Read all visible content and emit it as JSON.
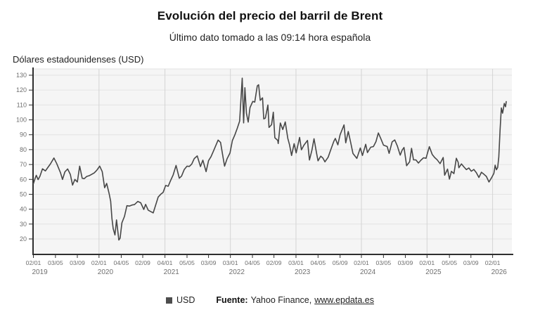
{
  "header": {
    "title": "Evolución del precio del barril de Brent",
    "subtitle": "Último dato tomado a las 09:14 hora española"
  },
  "legend": {
    "series_label": "USD",
    "marker_color": "#4d4d4d"
  },
  "footer": {
    "source_label": "Fuente:",
    "source_name": "Yahoo Finance,",
    "source_link": "www.epdata.es"
  },
  "colors": {
    "line": "#474747",
    "plot_bg": "#f5f5f5",
    "grid_h": "#e4e4e4",
    "grid_v": "#d4d4d4",
    "axis": "#2f2f2f",
    "tick_text": "#6f6f6f"
  },
  "chart_data": {
    "type": "line",
    "title": "Evolución del precio del barril de Brent",
    "subtitle": "Último dato tomado a las 09:14 hora española",
    "ylabel": "Dólares estadounidenses (USD)",
    "xlabel": "",
    "ylim": [
      16,
      134
    ],
    "yticks": [
      20,
      30,
      40,
      50,
      60,
      70,
      80,
      90,
      100,
      110,
      120,
      130
    ],
    "grid": true,
    "legend_position": "bottom",
    "xticks": [
      {
        "d": "2019-01-02",
        "label": "02/01",
        "year": "2019"
      },
      {
        "d": "2019-05-03",
        "label": "03/05"
      },
      {
        "d": "2019-09-03",
        "label": "03/09"
      },
      {
        "d": "2020-01-02",
        "label": "02/01",
        "year": "2020"
      },
      {
        "d": "2020-05-04",
        "label": "04/05"
      },
      {
        "d": "2020-09-02",
        "label": "02/09"
      },
      {
        "d": "2021-01-04",
        "label": "04/01",
        "year": "2021"
      },
      {
        "d": "2021-05-05",
        "label": "05/05"
      },
      {
        "d": "2021-09-03",
        "label": "03/09"
      },
      {
        "d": "2022-01-03",
        "label": "03/01",
        "year": "2022"
      },
      {
        "d": "2022-05-04",
        "label": "04/05"
      },
      {
        "d": "2022-09-02",
        "label": "02/09"
      },
      {
        "d": "2023-01-03",
        "label": "03/01",
        "year": "2023"
      },
      {
        "d": "2023-05-04",
        "label": "04/05"
      },
      {
        "d": "2023-09-05",
        "label": "05/09"
      },
      {
        "d": "2024-01-02",
        "label": "02/01",
        "year": "2024"
      },
      {
        "d": "2024-05-03",
        "label": "03/05"
      },
      {
        "d": "2024-09-03",
        "label": "03/09"
      },
      {
        "d": "2025-01-02",
        "label": "02/01",
        "year": "2025"
      },
      {
        "d": "2025-05-05",
        "label": "05/05"
      },
      {
        "d": "2025-09-03",
        "label": "03/09"
      },
      {
        "d": "2026-01-02",
        "label": "02/01",
        "year": "2026"
      }
    ],
    "series": [
      {
        "name": "USD",
        "points": [
          [
            "2019-01-02",
            57.1
          ],
          [
            "2019-01-11",
            60.5
          ],
          [
            "2019-01-18",
            62.7
          ],
          [
            "2019-01-28",
            59.9
          ],
          [
            "2019-02-08",
            62.1
          ],
          [
            "2019-02-22",
            67.1
          ],
          [
            "2019-03-08",
            65.7
          ],
          [
            "2019-03-21",
            67.9
          ],
          [
            "2019-04-05",
            70.3
          ],
          [
            "2019-04-25",
            74.4
          ],
          [
            "2019-05-10",
            70.6
          ],
          [
            "2019-05-31",
            64.5
          ],
          [
            "2019-06-12",
            60.0
          ],
          [
            "2019-06-25",
            65.1
          ],
          [
            "2019-07-10",
            67.0
          ],
          [
            "2019-07-25",
            63.4
          ],
          [
            "2019-08-07",
            56.2
          ],
          [
            "2019-08-20",
            60.0
          ],
          [
            "2019-09-03",
            58.3
          ],
          [
            "2019-09-16",
            68.9
          ],
          [
            "2019-09-30",
            60.8
          ],
          [
            "2019-10-11",
            60.5
          ],
          [
            "2019-10-25",
            62.0
          ],
          [
            "2019-11-08",
            62.5
          ],
          [
            "2019-11-22",
            63.4
          ],
          [
            "2019-12-06",
            64.4
          ],
          [
            "2019-12-20",
            66.1
          ],
          [
            "2020-01-06",
            68.9
          ],
          [
            "2020-01-20",
            65.2
          ],
          [
            "2020-02-03",
            54.4
          ],
          [
            "2020-02-14",
            57.3
          ],
          [
            "2020-02-28",
            50.5
          ],
          [
            "2020-03-06",
            45.3
          ],
          [
            "2020-03-13",
            33.8
          ],
          [
            "2020-03-20",
            26.9
          ],
          [
            "2020-03-30",
            22.7
          ],
          [
            "2020-04-08",
            32.8
          ],
          [
            "2020-04-21",
            19.3
          ],
          [
            "2020-04-28",
            20.5
          ],
          [
            "2020-05-08",
            30.9
          ],
          [
            "2020-05-22",
            35.1
          ],
          [
            "2020-06-05",
            42.3
          ],
          [
            "2020-06-19",
            42.1
          ],
          [
            "2020-07-03",
            42.8
          ],
          [
            "2020-07-17",
            43.1
          ],
          [
            "2020-08-05",
            45.2
          ],
          [
            "2020-08-21",
            44.3
          ],
          [
            "2020-09-08",
            39.8
          ],
          [
            "2020-09-18",
            43.2
          ],
          [
            "2020-10-02",
            39.3
          ],
          [
            "2020-10-30",
            37.5
          ],
          [
            "2020-11-13",
            42.8
          ],
          [
            "2020-11-27",
            48.2
          ],
          [
            "2020-12-11",
            50.0
          ],
          [
            "2020-12-24",
            51.3
          ],
          [
            "2021-01-08",
            55.9
          ],
          [
            "2021-01-22",
            55.4
          ],
          [
            "2021-02-05",
            59.3
          ],
          [
            "2021-02-19",
            62.9
          ],
          [
            "2021-03-05",
            69.4
          ],
          [
            "2021-03-23",
            60.8
          ],
          [
            "2021-04-05",
            62.2
          ],
          [
            "2021-04-20",
            66.6
          ],
          [
            "2021-05-05",
            68.9
          ],
          [
            "2021-05-18",
            68.7
          ],
          [
            "2021-06-01",
            70.3
          ],
          [
            "2021-06-15",
            74.0
          ],
          [
            "2021-07-01",
            75.8
          ],
          [
            "2021-07-19",
            68.6
          ],
          [
            "2021-08-02",
            72.9
          ],
          [
            "2021-08-20",
            65.2
          ],
          [
            "2021-09-03",
            72.6
          ],
          [
            "2021-09-17",
            75.3
          ],
          [
            "2021-10-01",
            79.3
          ],
          [
            "2021-10-26",
            86.4
          ],
          [
            "2021-11-09",
            84.8
          ],
          [
            "2021-11-26",
            72.7
          ],
          [
            "2021-12-01",
            68.9
          ],
          [
            "2021-12-15",
            73.9
          ],
          [
            "2021-12-31",
            77.8
          ],
          [
            "2022-01-14",
            86.1
          ],
          [
            "2022-01-28",
            90.0
          ],
          [
            "2022-02-11",
            94.4
          ],
          [
            "2022-02-24",
            99.1
          ],
          [
            "2022-03-08",
            128.0
          ],
          [
            "2022-03-16",
            98.0
          ],
          [
            "2022-03-23",
            121.6
          ],
          [
            "2022-04-01",
            104.4
          ],
          [
            "2022-04-11",
            98.5
          ],
          [
            "2022-04-21",
            108.3
          ],
          [
            "2022-05-06",
            112.4
          ],
          [
            "2022-05-17",
            111.9
          ],
          [
            "2022-05-31",
            122.8
          ],
          [
            "2022-06-08",
            123.6
          ],
          [
            "2022-06-17",
            113.1
          ],
          [
            "2022-06-30",
            114.8
          ],
          [
            "2022-07-06",
            100.7
          ],
          [
            "2022-07-15",
            101.2
          ],
          [
            "2022-07-29",
            110.0
          ],
          [
            "2022-08-05",
            94.9
          ],
          [
            "2022-08-19",
            96.7
          ],
          [
            "2022-08-29",
            105.1
          ],
          [
            "2022-09-07",
            88.0
          ],
          [
            "2022-09-23",
            86.2
          ],
          [
            "2022-09-26",
            84.1
          ],
          [
            "2022-10-07",
            97.9
          ],
          [
            "2022-10-21",
            93.5
          ],
          [
            "2022-11-04",
            98.6
          ],
          [
            "2022-11-18",
            87.6
          ],
          [
            "2022-11-28",
            83.2
          ],
          [
            "2022-12-09",
            76.1
          ],
          [
            "2022-12-23",
            84.0
          ],
          [
            "2023-01-04",
            77.8
          ],
          [
            "2023-01-23",
            88.2
          ],
          [
            "2023-02-03",
            79.9
          ],
          [
            "2023-02-17",
            83.0
          ],
          [
            "2023-03-06",
            86.2
          ],
          [
            "2023-03-17",
            73.0
          ],
          [
            "2023-03-31",
            79.8
          ],
          [
            "2023-04-12",
            87.3
          ],
          [
            "2023-04-26",
            77.7
          ],
          [
            "2023-05-04",
            72.5
          ],
          [
            "2023-05-19",
            75.6
          ],
          [
            "2023-06-01",
            74.3
          ],
          [
            "2023-06-12",
            71.8
          ],
          [
            "2023-06-30",
            74.9
          ],
          [
            "2023-07-14",
            79.9
          ],
          [
            "2023-07-31",
            85.6
          ],
          [
            "2023-08-09",
            87.5
          ],
          [
            "2023-08-23",
            83.2
          ],
          [
            "2023-09-05",
            90.0
          ],
          [
            "2023-09-27",
            96.6
          ],
          [
            "2023-10-06",
            84.6
          ],
          [
            "2023-10-20",
            92.2
          ],
          [
            "2023-11-03",
            84.9
          ],
          [
            "2023-11-16",
            77.4
          ],
          [
            "2023-12-07",
            74.1
          ],
          [
            "2023-12-26",
            81.1
          ],
          [
            "2024-01-08",
            76.1
          ],
          [
            "2024-01-26",
            83.6
          ],
          [
            "2024-02-05",
            78.0
          ],
          [
            "2024-02-23",
            81.6
          ],
          [
            "2024-03-08",
            82.1
          ],
          [
            "2024-03-22",
            85.4
          ],
          [
            "2024-04-05",
            91.2
          ],
          [
            "2024-04-19",
            87.3
          ],
          [
            "2024-05-03",
            83.0
          ],
          [
            "2024-05-24",
            82.1
          ],
          [
            "2024-06-04",
            77.5
          ],
          [
            "2024-06-21",
            85.2
          ],
          [
            "2024-07-05",
            86.5
          ],
          [
            "2024-07-19",
            82.6
          ],
          [
            "2024-08-05",
            76.3
          ],
          [
            "2024-08-16",
            79.7
          ],
          [
            "2024-08-26",
            81.4
          ],
          [
            "2024-09-10",
            69.2
          ],
          [
            "2024-09-27",
            71.9
          ],
          [
            "2024-10-07",
            80.9
          ],
          [
            "2024-10-18",
            73.1
          ],
          [
            "2024-11-01",
            73.1
          ],
          [
            "2024-11-15",
            71.0
          ],
          [
            "2024-11-29",
            72.9
          ],
          [
            "2024-12-13",
            74.5
          ],
          [
            "2024-12-27",
            74.2
          ],
          [
            "2025-01-15",
            82.0
          ],
          [
            "2025-01-31",
            76.8
          ],
          [
            "2025-02-14",
            74.7
          ],
          [
            "2025-02-28",
            73.2
          ],
          [
            "2025-03-14",
            70.6
          ],
          [
            "2025-03-31",
            74.7
          ],
          [
            "2025-04-09",
            62.8
          ],
          [
            "2025-04-25",
            66.9
          ],
          [
            "2025-05-05",
            60.2
          ],
          [
            "2025-05-16",
            65.4
          ],
          [
            "2025-05-30",
            63.9
          ],
          [
            "2025-06-13",
            74.2
          ],
          [
            "2025-06-23",
            71.5
          ],
          [
            "2025-06-27",
            67.8
          ],
          [
            "2025-07-11",
            70.4
          ],
          [
            "2025-07-25",
            68.4
          ],
          [
            "2025-08-08",
            66.6
          ],
          [
            "2025-08-22",
            67.7
          ],
          [
            "2025-09-05",
            65.5
          ],
          [
            "2025-09-19",
            66.7
          ],
          [
            "2025-10-03",
            64.5
          ],
          [
            "2025-10-17",
            61.3
          ],
          [
            "2025-10-31",
            64.8
          ],
          [
            "2025-11-14",
            63.5
          ],
          [
            "2025-11-28",
            62.0
          ],
          [
            "2025-12-12",
            58.3
          ],
          [
            "2025-12-26",
            61.0
          ],
          [
            "2026-01-09",
            64.0
          ],
          [
            "2026-01-16",
            69.5
          ],
          [
            "2026-01-23",
            66.5
          ],
          [
            "2026-01-30",
            68.0
          ],
          [
            "2026-02-06",
            75.0
          ],
          [
            "2026-02-13",
            93.0
          ],
          [
            "2026-02-20",
            108.0
          ],
          [
            "2026-02-27",
            104.5
          ],
          [
            "2026-03-06",
            111.0
          ],
          [
            "2026-03-13",
            108.8
          ],
          [
            "2026-03-17",
            112.3
          ]
        ]
      }
    ]
  }
}
